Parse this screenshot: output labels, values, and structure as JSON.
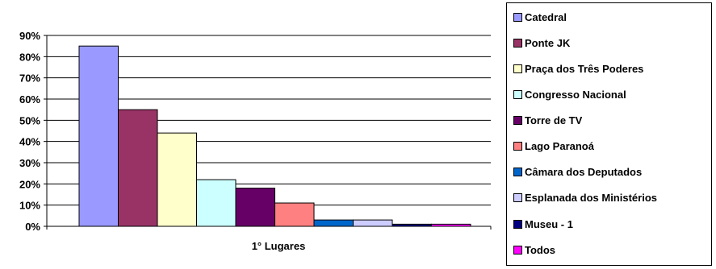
{
  "chart_data": {
    "type": "bar",
    "categories": [
      "1° Lugares"
    ],
    "series": [
      {
        "name": "Catedral",
        "values": [
          0.85
        ],
        "color": "#9999ff"
      },
      {
        "name": "Ponte JK",
        "values": [
          0.55
        ],
        "color": "#993366"
      },
      {
        "name": "Praça dos Três Poderes",
        "values": [
          0.44
        ],
        "color": "#ffffcc"
      },
      {
        "name": "Congresso Nacional",
        "values": [
          0.22
        ],
        "color": "#ccffff"
      },
      {
        "name": "Torre de TV",
        "values": [
          0.18
        ],
        "color": "#660066"
      },
      {
        "name": "Lago Paranoá",
        "values": [
          0.11
        ],
        "color": "#ff8080"
      },
      {
        "name": "Câmara dos Deputados",
        "values": [
          0.03
        ],
        "color": "#0066cc"
      },
      {
        "name": "Esplanada dos Ministérios",
        "values": [
          0.03
        ],
        "color": "#ccccff"
      },
      {
        "name": "Museu - 1",
        "values": [
          0.01
        ],
        "color": "#000080"
      },
      {
        "name": "Todos",
        "values": [
          0.01
        ],
        "color": "#ff00ff"
      }
    ],
    "ylim": [
      0,
      0.9
    ],
    "yticks": [
      "0%",
      "10%",
      "20%",
      "30%",
      "40%",
      "50%",
      "60%",
      "70%",
      "80%",
      "90%"
    ],
    "grid": true,
    "legend": "right"
  }
}
